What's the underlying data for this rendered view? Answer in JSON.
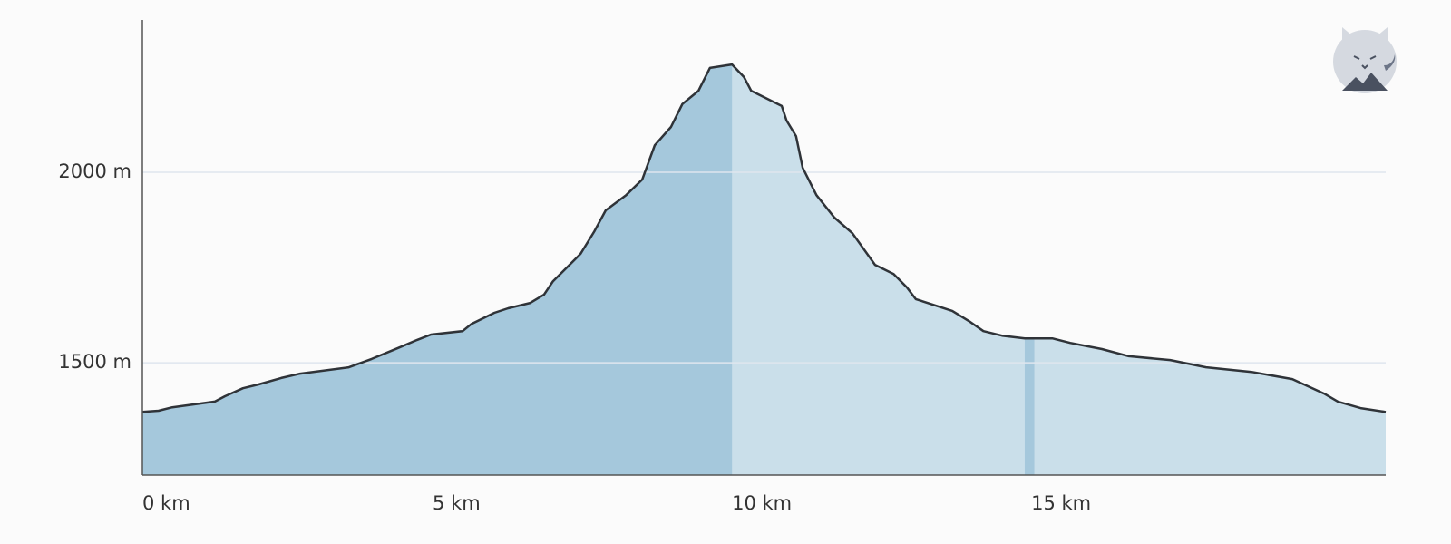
{
  "chart_data": {
    "type": "area",
    "x": [
      0,
      0.27,
      0.5,
      1.21,
      1.38,
      1.68,
      1.94,
      2.32,
      2.62,
      3.45,
      3.83,
      4.29,
      4.59,
      4.82,
      5.35,
      5.5,
      5.88,
      6.11,
      6.48,
      6.71,
      6.86,
      7.09,
      7.32,
      7.55,
      7.74,
      8.08,
      8.35,
      8.56,
      8.83,
      9.02,
      9.29,
      9.48,
      9.85,
      10.05,
      10.17,
      10.68,
      10.76,
      10.92,
      11.03,
      11.26,
      11.56,
      11.86,
      12.24,
      12.55,
      12.77,
      12.92,
      13.53,
      13.83,
      14.05,
      14.36,
      14.74,
      15.2,
      15.5,
      16.03,
      16.48,
      17.17,
      17.77,
      18.53,
      19.21,
      19.74,
      19.97,
      20.35,
      20.77
    ],
    "values": [
      1371,
      1374,
      1383,
      1398,
      1412,
      1433,
      1443,
      1460,
      1471,
      1488,
      1510,
      1540,
      1560,
      1574,
      1583,
      1602,
      1631,
      1643,
      1657,
      1679,
      1714,
      1750,
      1786,
      1845,
      1900,
      1940,
      1981,
      2071,
      2119,
      2179,
      2214,
      2274,
      2283,
      2250,
      2214,
      2174,
      2136,
      2095,
      2012,
      1940,
      1881,
      1840,
      1757,
      1733,
      1698,
      1667,
      1636,
      1607,
      1583,
      1571,
      1564,
      1564,
      1552,
      1536,
      1517,
      1507,
      1488,
      1476,
      1457,
      1419,
      1398,
      1381,
      1371
    ],
    "color": "#cadfea",
    "line_color": "#2f3338",
    "highlights": [
      [
        0,
        9.85
      ],
      [
        14.74,
        14.9
      ]
    ],
    "highlight_color": "#a5c8dc",
    "xlim": [
      0,
      20.77
    ],
    "ylim": [
      1205,
      2400
    ],
    "xticks": [
      {
        "value": 0,
        "label": "0 km"
      },
      {
        "value": 5,
        "label": "5 km"
      },
      {
        "value": 10,
        "label": "10 km"
      },
      {
        "value": 15,
        "label": "15 km"
      }
    ],
    "yticks": [
      {
        "value": 1500,
        "label": "1500 m"
      },
      {
        "value": 2000,
        "label": "2000 m"
      }
    ],
    "grid": true
  }
}
